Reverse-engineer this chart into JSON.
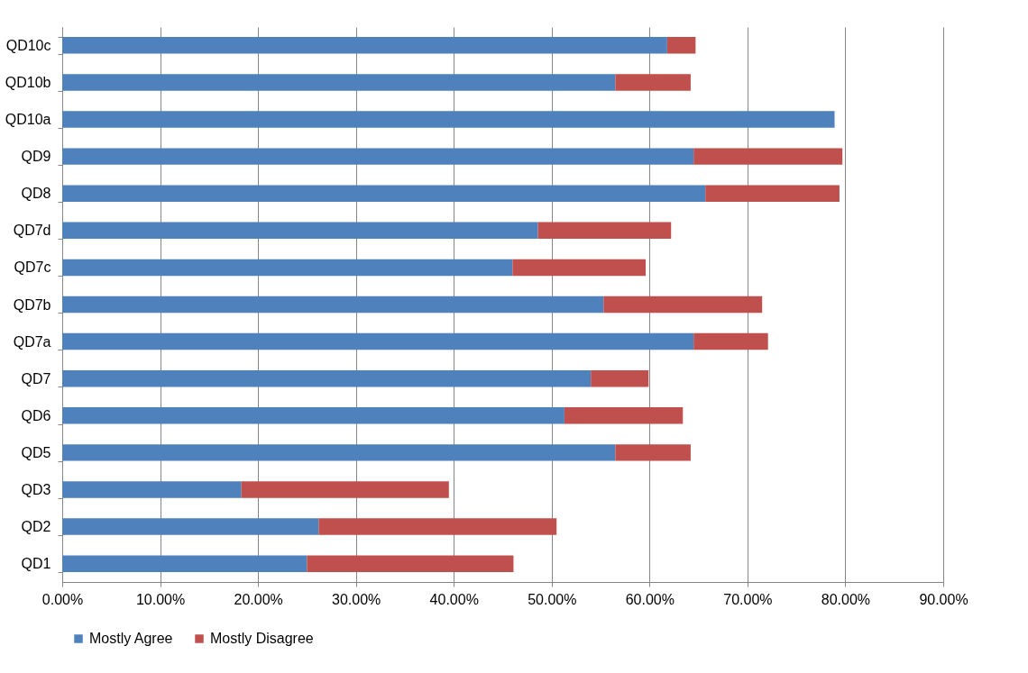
{
  "chart_data": {
    "type": "bar",
    "orientation": "horizontal",
    "stacked": true,
    "categories": [
      "QD10c",
      "QD10b",
      "QD10a",
      "QD9",
      "QD8",
      "QD7d",
      "QD7c",
      "QD7b",
      "QD7a",
      "QD7",
      "QD6",
      "QD5",
      "QD3",
      "QD2",
      "QD1"
    ],
    "series": [
      {
        "name": "Mostly Agree",
        "color": "#4f81bd",
        "values": [
          61.8,
          56.5,
          78.9,
          64.5,
          65.7,
          48.6,
          46.0,
          55.3,
          64.5,
          54.0,
          51.3,
          56.5,
          18.3,
          26.2,
          25.0
        ]
      },
      {
        "name": "Mostly Disagree",
        "color": "#c0504d",
        "values": [
          2.9,
          7.7,
          0,
          15.2,
          13.7,
          13.6,
          13.6,
          16.2,
          7.6,
          5.9,
          12.1,
          7.7,
          21.2,
          24.3,
          21.1
        ]
      }
    ],
    "xlim": [
      0,
      90
    ],
    "xticks": [
      {
        "value": 0,
        "label": "0.00%"
      },
      {
        "value": 10,
        "label": "10.00%"
      },
      {
        "value": 20,
        "label": "20.00%"
      },
      {
        "value": 30,
        "label": "30.00%"
      },
      {
        "value": 40,
        "label": "40.00%"
      },
      {
        "value": 50,
        "label": "50.00%"
      },
      {
        "value": 60,
        "label": "60.00%"
      },
      {
        "value": 70,
        "label": "70.00%"
      },
      {
        "value": 80,
        "label": "80.00%"
      },
      {
        "value": 90,
        "label": "90.00%"
      }
    ],
    "grid": "x",
    "legend": "bottom"
  }
}
